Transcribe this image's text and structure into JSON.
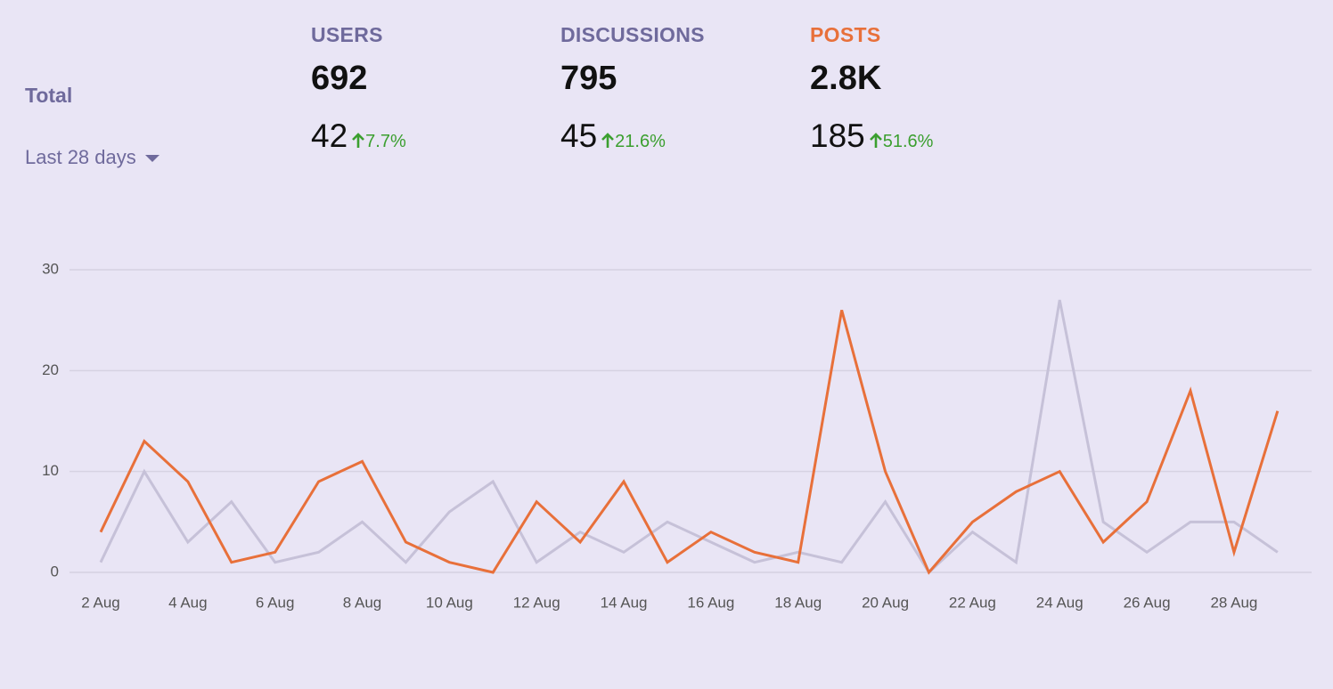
{
  "summary": {
    "row_label": "Total",
    "period": "Last 28 days",
    "stats": [
      {
        "label": "USERS",
        "total": "692",
        "recent": "42",
        "change": "7.7%"
      },
      {
        "label": "DISCUSSIONS",
        "total": "795",
        "recent": "45",
        "change": "21.6%"
      },
      {
        "label": "POSTS",
        "total": "2.8K",
        "recent": "185",
        "change": "51.6%"
      }
    ]
  },
  "chart_data": {
    "type": "line",
    "categories": [
      "2 Aug",
      null,
      "4 Aug",
      null,
      "6 Aug",
      null,
      "8 Aug",
      null,
      "10 Aug",
      null,
      "12 Aug",
      null,
      "14 Aug",
      null,
      "16 Aug",
      null,
      "18 Aug",
      null,
      "20 Aug",
      null,
      "22 Aug",
      null,
      "24 Aug",
      null,
      "26 Aug",
      null,
      "28 Aug",
      null
    ],
    "series": [
      {
        "color": "#c6c1d8",
        "values": [
          1,
          10,
          3,
          7,
          1,
          2,
          5,
          1,
          6,
          9,
          1,
          4,
          2,
          5,
          3,
          1,
          2,
          1,
          7,
          0,
          4,
          1,
          27,
          5,
          2,
          5,
          5,
          2
        ]
      },
      {
        "color": "#e8703a",
        "values": [
          4,
          13,
          9,
          1,
          2,
          9,
          11,
          3,
          1,
          0,
          7,
          3,
          9,
          1,
          4,
          2,
          1,
          26,
          10,
          0,
          5,
          8,
          10,
          3,
          7,
          18,
          2,
          16
        ]
      }
    ],
    "ylim": [
      0,
      30
    ],
    "yticks": [
      0,
      10,
      20,
      30
    ],
    "grid": true
  }
}
